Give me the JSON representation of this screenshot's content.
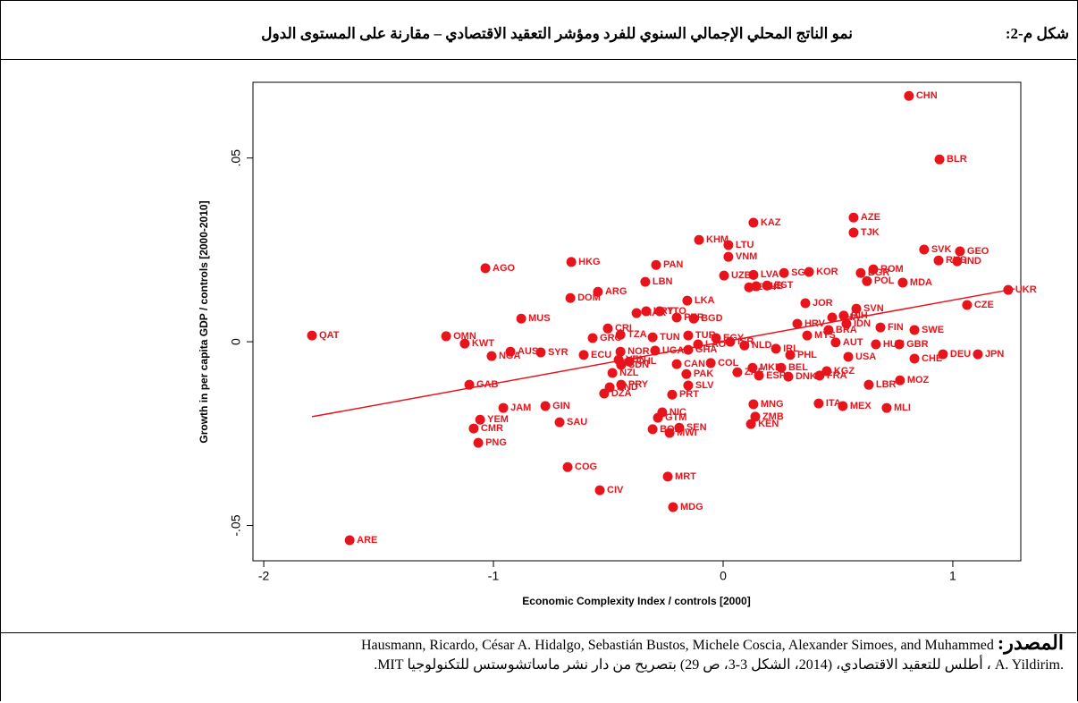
{
  "header": {
    "label": "شكل م-2:",
    "title": "نمو الناتج المحلي الإجمالي السنوي للفرد ومؤشر التعقيد الاقتصادي – مقارنة على المستوى الدول"
  },
  "source": {
    "label": "المصدر:",
    "line1": "Hausmann, Ricardo, César A. Hidalgo, Sebastián Bustos, Michele Coscia, Alexander Simoes, and Muhammed",
    "line2": ".A. Yildirim ، أطلس للتعقيد الاقتصادي، (2014، الشكل 3-3، ص 29) بتصريح من دار نشر ماساتشوستس للتكنولوجيا MIT."
  },
  "chart_data": {
    "type": "scatter",
    "x_label": "Economic Complexity Index / controls [2000]",
    "y_label": "Growth in per capita GDP / controls [2000-2010]",
    "color": "#e8141c",
    "xlim": [
      -2.047,
      1.296
    ],
    "ylim": [
      -0.0596,
      0.0706
    ],
    "xticks": [
      -2,
      -1,
      0,
      1
    ],
    "yticks": [
      {
        "value": -0.05,
        "label": "-.05"
      },
      0,
      {
        "value": 0.05,
        "label": ".05"
      }
    ],
    "point_labels": [
      "QAT",
      "OMN",
      "KWT",
      "AUS",
      "SYR",
      "NGA",
      "ECU",
      "GAB",
      "JAM",
      "GIN",
      "SAU",
      "YEM",
      "CMR",
      "PNG",
      "COG",
      "CIV",
      "MRT",
      "MDG",
      "ARE",
      "MUS",
      "DOM",
      "AGO",
      "HKG",
      "ARG",
      "LBN",
      "PAN",
      "KHM",
      "MAR",
      "URY",
      "TTO",
      "PER",
      "LKA",
      "BGD",
      "CRI",
      "GRC",
      "TZA",
      "TUN",
      "TUR",
      "LAO",
      "EGY",
      "ISR",
      "NLD",
      "NOR",
      "VEN",
      "CHL",
      "UGA",
      "GHA",
      "CAN",
      "SDN",
      "NZL",
      "PAK",
      "COL",
      "ZAF",
      "MKD",
      "BEL",
      "HND",
      "DZA",
      "PRY",
      "SLV",
      "PRT",
      "NIC",
      "GTM",
      "BOL",
      "SEN",
      "MWI",
      "MNG",
      "ZMB",
      "KEN",
      "ESP",
      "DNK",
      "FRA",
      "ITA",
      "MEX",
      "KGZ",
      "LBR",
      "MLI",
      "MOZ",
      "USA",
      "AUT",
      "BRA",
      "MYS",
      "IRL",
      "PHL",
      "HUN",
      "GBR",
      "CHE",
      "DEU",
      "JPN",
      "SWE",
      "FIN",
      "IDN",
      "CZE",
      "UKR",
      "THA",
      "BIH",
      "SVN",
      "JOR",
      "HRV",
      "KOR",
      "EST",
      "ETH",
      "ALB",
      "LVA",
      "UZB",
      "SGP",
      "LTU",
      "VNM",
      "KAZ",
      "AZE",
      "TJK",
      "POL",
      "MDA",
      "BGR",
      "ROM",
      "SVK",
      "RUS",
      "GEO",
      "IND",
      "BLR",
      "CHN"
    ],
    "x": [
      -1.79,
      -1.206,
      -1.125,
      -0.926,
      -0.794,
      -1.008,
      -0.607,
      -1.105,
      -0.957,
      -0.774,
      -0.712,
      -1.058,
      -1.086,
      -1.066,
      -0.677,
      -0.537,
      -0.241,
      -0.218,
      -1.626,
      -0.879,
      -0.665,
      -1.035,
      -0.661,
      -0.545,
      -0.339,
      -0.292,
      -0.105,
      -0.377,
      -0.335,
      -0.276,
      -0.202,
      -0.156,
      -0.128,
      -0.502,
      -0.568,
      -0.447,
      -0.307,
      -0.152,
      -0.109,
      -0.031,
      0.031,
      0.093,
      -0.447,
      -0.455,
      -0.409,
      -0.296,
      -0.152,
      -0.202,
      -0.444,
      -0.482,
      -0.16,
      -0.054,
      0.062,
      0.128,
      0.253,
      -0.494,
      -0.518,
      -0.444,
      -0.152,
      -0.222,
      -0.265,
      -0.284,
      -0.307,
      -0.191,
      -0.233,
      0.132,
      0.14,
      0.121,
      0.156,
      0.284,
      0.42,
      0.416,
      0.521,
      0.451,
      0.634,
      0.712,
      0.77,
      0.545,
      0.49,
      0.459,
      0.366,
      0.23,
      0.292,
      0.665,
      0.767,
      0.833,
      0.957,
      1.109,
      0.833,
      0.685,
      0.537,
      1.062,
      1.241,
      0.475,
      0.525,
      0.58,
      0.358,
      0.323,
      0.374,
      0.191,
      0.113,
      0.144,
      0.132,
      0.004,
      0.265,
      0.023,
      0.023,
      0.132,
      0.568,
      0.568,
      0.626,
      0.782,
      0.599,
      0.654,
      0.875,
      0.938,
      1.031,
      1.019,
      0.942,
      0.809
    ],
    "values": [
      0.0017,
      0.0015,
      -0.0005,
      -0.0027,
      -0.0029,
      -0.0039,
      -0.0036,
      -0.0117,
      -0.018,
      -0.0175,
      -0.0219,
      -0.0212,
      -0.0236,
      -0.0275,
      -0.0341,
      -0.0404,
      -0.0367,
      -0.045,
      -0.054,
      0.0063,
      0.0119,
      0.02,
      0.0217,
      0.0136,
      0.0163,
      0.0209,
      0.0277,
      0.0078,
      0.0083,
      0.0083,
      0.0066,
      0.0112,
      0.0063,
      0.0036,
      0.001,
      0.0019,
      0.0012,
      0.0017,
      -0.0007,
      0.001,
      0,
      -0.001,
      -0.0027,
      -0.0049,
      -0.0054,
      -0.0024,
      -0.0022,
      -0.0061,
      -0.0063,
      -0.0085,
      -0.0088,
      -0.0058,
      -0.0083,
      -0.0071,
      -0.0071,
      -0.0124,
      -0.0141,
      -0.0117,
      -0.0119,
      -0.0144,
      -0.0192,
      -0.0207,
      -0.0238,
      -0.0234,
      -0.0248,
      -0.017,
      -0.0204,
      -0.0224,
      -0.0092,
      -0.0095,
      -0.0092,
      -0.0168,
      -0.0175,
      -0.008,
      -0.0117,
      -0.018,
      -0.0105,
      -0.0041,
      -0.0002,
      0.0032,
      0.0017,
      -0.0019,
      -0.0036,
      -0.0007,
      -0.0007,
      -0.0046,
      -0.0034,
      -0.0034,
      0.0032,
      0.0039,
      0.0049,
      0.01,
      0.0141,
      0.0066,
      0.0071,
      0.009,
      0.0105,
      0.0049,
      0.019,
      0.0153,
      0.0148,
      0.0151,
      0.0182,
      0.018,
      0.0187,
      0.0263,
      0.0231,
      0.0324,
      0.0338,
      0.0297,
      0.0165,
      0.0161,
      0.0187,
      0.0197,
      0.0251,
      0.0221,
      0.0246,
      0.0219,
      0.0496,
      0.0669
    ],
    "trend": {
      "color": "#e8141c",
      "x": [
        -1.79,
        1.27
      ],
      "y": [
        -0.0204,
        0.0144
      ]
    }
  }
}
